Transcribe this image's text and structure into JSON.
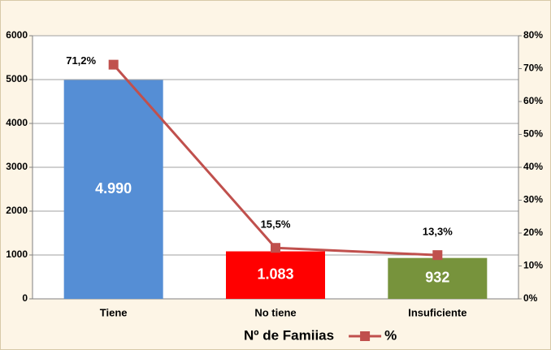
{
  "chart_data": {
    "type": "bar-line",
    "categories": [
      "Tiene",
      "No tiene",
      "Insuficiente"
    ],
    "series": [
      {
        "name": "Nº de Famiias",
        "type": "bar",
        "colors": [
          "#558ed5",
          "#ff0000",
          "#77933c"
        ],
        "values": [
          4990,
          1083,
          932
        ],
        "value_labels": [
          "4.990",
          "1.083",
          "932"
        ]
      },
      {
        "name": "%",
        "type": "line",
        "axis": "y2",
        "color": "#c0504d",
        "values": [
          71.2,
          15.5,
          13.3
        ],
        "value_labels": [
          "71,2%",
          "15,5%",
          "13,3%"
        ]
      }
    ],
    "ylim": [
      0,
      6000
    ],
    "yticks": [
      0,
      1000,
      2000,
      3000,
      4000,
      5000,
      6000
    ],
    "y2lim": [
      0,
      80
    ],
    "y2ticks": [
      {
        "value": 0,
        "label": "0%"
      },
      {
        "value": 10,
        "label": "10%"
      },
      {
        "value": 20,
        "label": "20%"
      },
      {
        "value": 30,
        "label": "30%"
      },
      {
        "value": 40,
        "label": "40%"
      },
      {
        "value": 50,
        "label": "50%"
      },
      {
        "value": 60,
        "label": "60%"
      },
      {
        "value": 70,
        "label": "70%"
      },
      {
        "value": 80,
        "label": "80%"
      }
    ],
    "grid": true
  }
}
